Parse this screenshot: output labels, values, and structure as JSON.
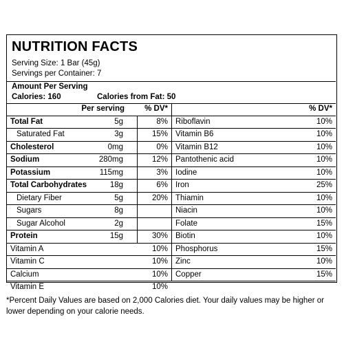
{
  "title": "NUTRITION FACTS",
  "serving_size": "Serving Size: 1 Bar (45g)",
  "servings_per_container": "Servings per Container: 7",
  "amount_per_serving": "Amount Per Serving",
  "calories": "Calories: 160",
  "calories_from_fat": "Calories from Fat: 50",
  "left_header": {
    "per_serving": "Per serving",
    "dv": "% DV*"
  },
  "right_header": {
    "dv": "% DV*"
  },
  "left_rows": [
    {
      "name": "Total Fat",
      "amount": "5g",
      "dv": "8%",
      "bold": true,
      "indent": false
    },
    {
      "name": "Saturated Fat",
      "amount": "3g",
      "dv": "15%",
      "bold": false,
      "indent": true
    },
    {
      "name": "Cholesterol",
      "amount": "0mg",
      "dv": "0%",
      "bold": true,
      "indent": false
    },
    {
      "name": "Sodium",
      "amount": "280mg",
      "dv": "12%",
      "bold": true,
      "indent": false
    },
    {
      "name": "Potassium",
      "amount": "115mg",
      "dv": "3%",
      "bold": true,
      "indent": false
    },
    {
      "name": "Total Carbohydrates",
      "amount": "18g",
      "dv": "6%",
      "bold": true,
      "indent": false
    },
    {
      "name": "Dietary Fiber",
      "amount": "5g",
      "dv": "20%",
      "bold": false,
      "indent": true
    },
    {
      "name": "Sugars",
      "amount": "8g",
      "dv": "",
      "bold": false,
      "indent": true
    },
    {
      "name": "Sugar Alcohol",
      "amount": "2g",
      "dv": "",
      "bold": false,
      "indent": true
    },
    {
      "name": "Protein",
      "amount": "15g",
      "dv": "30%",
      "bold": true,
      "indent": false
    },
    {
      "name": "Vitamin A",
      "amount": "",
      "dv": "10%",
      "bold": false,
      "indent": false
    },
    {
      "name": "Vitamin C",
      "amount": "",
      "dv": "10%",
      "bold": false,
      "indent": false
    },
    {
      "name": "Calcium",
      "amount": "",
      "dv": "10%",
      "bold": false,
      "indent": false
    },
    {
      "name": "Vitamin E",
      "amount": "",
      "dv": "10%",
      "bold": false,
      "indent": false
    }
  ],
  "right_rows": [
    {
      "name": "Riboflavin",
      "dv": "10%"
    },
    {
      "name": "Vitamin B6",
      "dv": "10%"
    },
    {
      "name": "Vitamin B12",
      "dv": "10%"
    },
    {
      "name": "Pantothenic acid",
      "dv": "10%"
    },
    {
      "name": "Iodine",
      "dv": "10%"
    },
    {
      "name": "Iron",
      "dv": "25%"
    },
    {
      "name": "Thiamin",
      "dv": "10%"
    },
    {
      "name": "Niacin",
      "dv": "10%"
    },
    {
      "name": "Folate",
      "dv": "15%"
    },
    {
      "name": "Biotin",
      "dv": "10%"
    },
    {
      "name": "Phosphorus",
      "dv": "15%"
    },
    {
      "name": "Zinc",
      "dv": "10%"
    },
    {
      "name": "Copper",
      "dv": "15%"
    }
  ],
  "footnote": "*Percent Daily Values are based on 2,000 Calories diet. Your daily values may be higher or lower depending on your calorie needs."
}
